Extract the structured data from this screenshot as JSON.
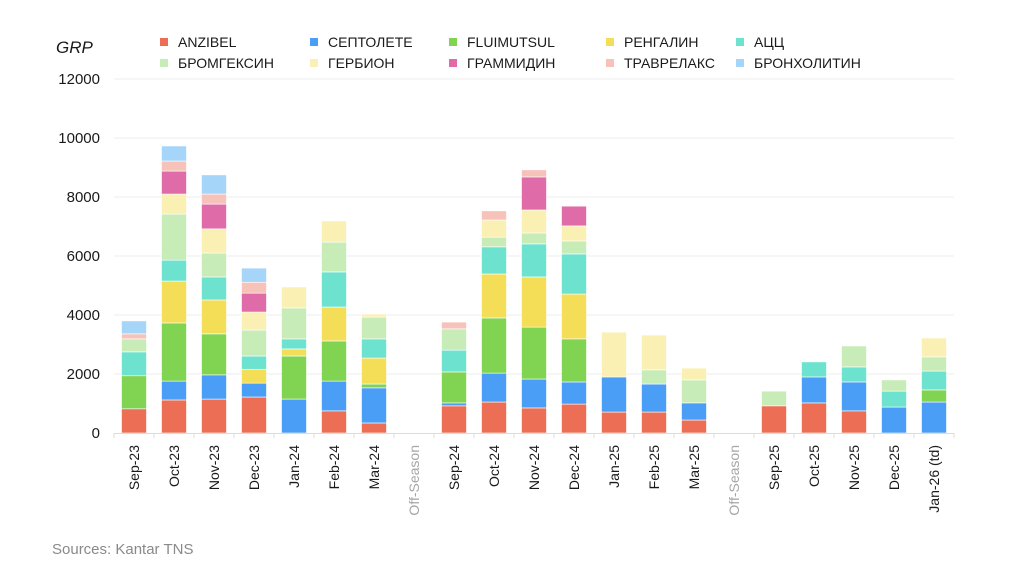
{
  "source_note": "Sources: Kantar TNS",
  "chart_data": {
    "type": "bar",
    "stacked": true,
    "title": "",
    "ylabel": "GRP",
    "xlabel": "",
    "ylim": [
      0,
      12000
    ],
    "yticks": [
      0,
      2000,
      4000,
      6000,
      8000,
      10000,
      12000
    ],
    "grid": true,
    "legend_position": "top",
    "categories": [
      "Sep-23",
      "Oct-23",
      "Nov-23",
      "Dec-23",
      "Jan-24",
      "Feb-24",
      "Mar-24",
      "Off-Season",
      "Sep-24",
      "Oct-24",
      "Nov-24",
      "Dec-24",
      "Jan-25",
      "Feb-25",
      "Mar-25",
      "Off-Season",
      "Sep-25",
      "Oct-25",
      "Nov-25",
      "Dec-25",
      "Jan-26 (td)"
    ],
    "muted_categories": [
      "Off-Season"
    ],
    "series": [
      {
        "name": "ANZIBEL",
        "color": "#EC6E55",
        "values": [
          820,
          1120,
          1150,
          1220,
          0,
          750,
          340,
          0,
          920,
          1050,
          850,
          980,
          710,
          710,
          440,
          0,
          920,
          1020,
          750,
          0,
          0
        ]
      },
      {
        "name": "СЕПТОЛЕТЕ",
        "color": "#4A9EF5",
        "values": [
          0,
          640,
          820,
          470,
          1150,
          1010,
          1190,
          0,
          100,
          980,
          980,
          750,
          1190,
          950,
          580,
          0,
          0,
          880,
          980,
          880,
          1050
        ]
      },
      {
        "name": "FLUIMUTSUL",
        "color": "#81D352",
        "values": [
          1120,
          1970,
          1390,
          0,
          1460,
          1360,
          130,
          0,
          1050,
          1870,
          1760,
          1460,
          0,
          0,
          0,
          0,
          0,
          0,
          0,
          0,
          410
        ]
      },
      {
        "name": "РЕНГАЛИН",
        "color": "#F5DE57",
        "values": [
          0,
          1420,
          1150,
          470,
          240,
          1150,
          880,
          0,
          0,
          1490,
          1700,
          1520,
          0,
          0,
          0,
          0,
          0,
          0,
          0,
          0,
          0
        ]
      },
      {
        "name": "АЦЦ",
        "color": "#6DE3CF",
        "values": [
          810,
          710,
          780,
          450,
          340,
          1190,
          650,
          0,
          740,
          920,
          1120,
          1360,
          0,
          0,
          0,
          0,
          0,
          510,
          510,
          540,
          640
        ]
      },
      {
        "name": "БРОМГЕКСИН",
        "color": "#C8ECB7",
        "values": [
          440,
          1560,
          810,
          880,
          1050,
          1010,
          740,
          0,
          720,
          330,
          370,
          440,
          0,
          480,
          780,
          0,
          500,
          0,
          710,
          380,
          480
        ]
      },
      {
        "name": "ГЕРБИОН",
        "color": "#FAF0B3",
        "values": [
          0,
          680,
          820,
          610,
          710,
          720,
          100,
          0,
          0,
          580,
          780,
          510,
          1520,
          1180,
          400,
          0,
          0,
          0,
          0,
          0,
          640
        ]
      },
      {
        "name": "ГРАММИДИН",
        "color": "#DF6BA8",
        "values": [
          0,
          780,
          840,
          640,
          0,
          0,
          0,
          0,
          0,
          0,
          1120,
          670,
          0,
          0,
          0,
          0,
          0,
          0,
          0,
          0,
          0
        ]
      },
      {
        "name": "ТРАВРЕЛАКС",
        "color": "#F6C2BA",
        "values": [
          170,
          340,
          340,
          370,
          0,
          0,
          0,
          0,
          230,
          310,
          240,
          0,
          0,
          0,
          0,
          0,
          0,
          0,
          0,
          0,
          0
        ]
      },
      {
        "name": "БРОНХОЛИТИН",
        "color": "#A6D5FA",
        "values": [
          440,
          510,
          650,
          480,
          0,
          0,
          0,
          0,
          0,
          0,
          0,
          0,
          0,
          0,
          0,
          0,
          0,
          0,
          0,
          0,
          0
        ]
      }
    ]
  }
}
